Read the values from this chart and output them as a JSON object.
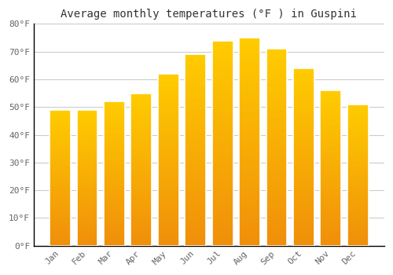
{
  "title": "Average monthly temperatures (°F ) in Guspini",
  "months": [
    "Jan",
    "Feb",
    "Mar",
    "Apr",
    "May",
    "Jun",
    "Jul",
    "Aug",
    "Sep",
    "Oct",
    "Nov",
    "Dec"
  ],
  "values": [
    49,
    49,
    52,
    55,
    62,
    69,
    74,
    75,
    71,
    64,
    56,
    51
  ],
  "bar_color_top": "#FFCC00",
  "bar_color_bottom": "#F0900A",
  "bar_edge_color": "#FFFFFF",
  "ylim": [
    0,
    80
  ],
  "yticks": [
    0,
    10,
    20,
    30,
    40,
    50,
    60,
    70,
    80
  ],
  "ytick_labels": [
    "0°F",
    "10°F",
    "20°F",
    "30°F",
    "40°F",
    "50°F",
    "60°F",
    "70°F",
    "80°F"
  ],
  "background_color": "#FFFFFF",
  "grid_color": "#CCCCCC",
  "title_fontsize": 10,
  "tick_fontsize": 8,
  "tick_color": "#666666",
  "spine_color": "#000000",
  "bar_width": 0.78
}
